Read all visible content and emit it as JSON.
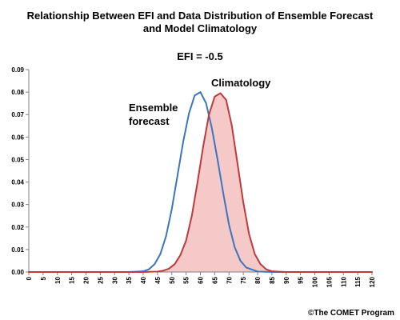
{
  "chart_data": {
    "type": "line",
    "title": "Relationship Between EFI and Data Distribution of Ensemble Forecast and Model Climatology",
    "title_lines": [
      "Relationship Between EFI and Data Distribution of Ensemble Forecast",
      "and Model Climatology"
    ],
    "subtitle": "EFI = -0.5",
    "xlabel": "",
    "ylabel": "",
    "xlim": [
      0,
      120
    ],
    "ylim": [
      0,
      0.09
    ],
    "x_ticks": [
      "0",
      "5",
      "10",
      "15",
      "20",
      "25",
      "30",
      "35",
      "40",
      "45",
      "50",
      "55",
      "60",
      "65",
      "70",
      "75",
      "80",
      "85",
      "90",
      "95",
      "100",
      "105",
      "110",
      "115",
      "120"
    ],
    "y_ticks": [
      "0.00",
      "0.01",
      "0.02",
      "0.03",
      "0.04",
      "0.05",
      "0.06",
      "0.07",
      "0.08",
      "0.09"
    ],
    "grid": false,
    "series": [
      {
        "name": "Ensemble forecast",
        "label_lines": [
          "Ensemble",
          "forecast"
        ],
        "color": "#3b75c0",
        "fill": false,
        "x": [
          0,
          5,
          10,
          15,
          20,
          25,
          30,
          35,
          40,
          42,
          44,
          46,
          48,
          50,
          52,
          54,
          56,
          58,
          60,
          62,
          64,
          66,
          68,
          70,
          72,
          74,
          76,
          80,
          85,
          90,
          95,
          100,
          105,
          110,
          115,
          120
        ],
        "y": [
          0,
          0,
          0,
          0,
          0,
          0,
          0,
          0,
          0.0003,
          0.0012,
          0.0035,
          0.008,
          0.016,
          0.028,
          0.043,
          0.058,
          0.0705,
          0.0785,
          0.08,
          0.075,
          0.064,
          0.05,
          0.035,
          0.021,
          0.011,
          0.005,
          0.002,
          0.0002,
          0,
          0,
          0,
          0,
          0,
          0,
          0,
          0
        ]
      },
      {
        "name": "Climatology",
        "label_lines": [
          "Climatology"
        ],
        "color": "#c0393b",
        "fill": true,
        "fill_color": "#f4c9c8",
        "x": [
          0,
          5,
          10,
          15,
          20,
          25,
          30,
          35,
          40,
          45,
          47,
          49,
          51,
          53,
          55,
          57,
          59,
          61,
          63,
          65,
          67,
          69,
          71,
          73,
          75,
          77,
          79,
          81,
          83,
          85,
          90,
          95,
          100,
          105,
          110,
          115,
          120
        ],
        "y": [
          0,
          0,
          0,
          0,
          0,
          0,
          0,
          0,
          0,
          0.0002,
          0.0006,
          0.0015,
          0.0035,
          0.0075,
          0.014,
          0.025,
          0.04,
          0.056,
          0.07,
          0.078,
          0.0795,
          0.0765,
          0.065,
          0.048,
          0.031,
          0.017,
          0.008,
          0.0035,
          0.0012,
          0.0003,
          0,
          0,
          0,
          0,
          0,
          0,
          0
        ]
      }
    ],
    "credit": "©The COMET Program",
    "colors": {
      "axis": "#808080",
      "ensemble": "#3b75c0",
      "climatology": "#c0393b",
      "climatology_fill": "#f4c9c8"
    }
  }
}
